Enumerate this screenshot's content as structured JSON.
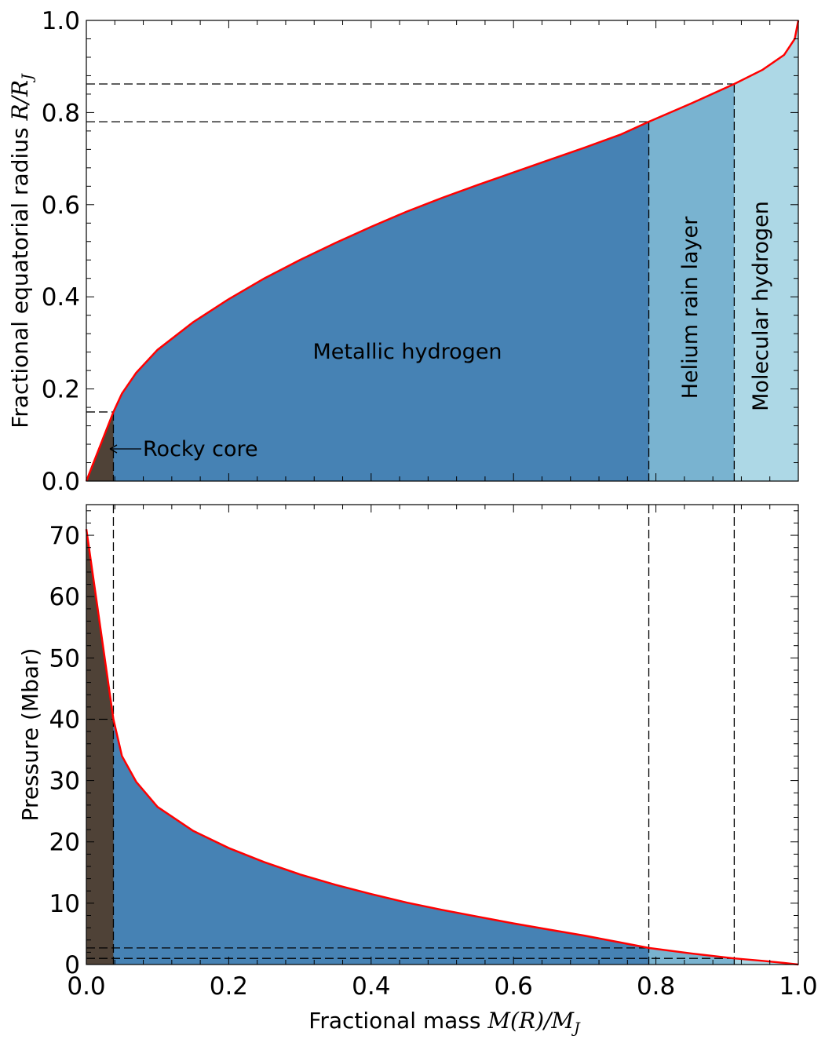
{
  "colors": {
    "rocky_core": "#4f4237",
    "metallic_hydrogen": "#4682b4",
    "helium_rain": "#79b3d0",
    "molecular_hydrogen": "#add8e6",
    "curve": "#ff0000",
    "dashed": "#000000"
  },
  "chart_data": [
    {
      "type": "area",
      "title": "",
      "xlabel": "",
      "ylabel": "Fractional equatorial radius",
      "ylabel_math": "R/R",
      "ylabel_math_sub": "J",
      "xlim": [
        0,
        1
      ],
      "ylim": [
        0,
        1
      ],
      "x_ticks": [
        0.0,
        0.2,
        0.4,
        0.6,
        0.8,
        1.0
      ],
      "y_ticks": [
        "0.0",
        "0.2",
        "0.4",
        "0.6",
        "0.8",
        "1.0"
      ],
      "boundaries": [
        {
          "mass": 0.038,
          "radius": 0.15
        },
        {
          "mass": 0.79,
          "radius": 0.78
        },
        {
          "mass": 0.91,
          "radius": 0.862
        }
      ],
      "series": [
        {
          "x": [
            0,
            0.038,
            0.05,
            0.07,
            0.1,
            0.15,
            0.2,
            0.25,
            0.3,
            0.35,
            0.4,
            0.45,
            0.5,
            0.55,
            0.6,
            0.65,
            0.7,
            0.75,
            0.79,
            0.85,
            0.91,
            0.95,
            0.98,
            0.995,
            1.0
          ],
          "y": [
            0,
            0.15,
            0.19,
            0.235,
            0.285,
            0.345,
            0.395,
            0.44,
            0.48,
            0.517,
            0.552,
            0.585,
            0.615,
            0.643,
            0.67,
            0.697,
            0.724,
            0.752,
            0.78,
            0.82,
            0.862,
            0.893,
            0.925,
            0.96,
            1.0
          ]
        }
      ],
      "annotations": {
        "metallic": "Metallic hydrogen",
        "helium": "Helium rain layer",
        "molecular": "Molecular hydrogen",
        "rocky": "Rocky core"
      }
    },
    {
      "type": "area",
      "title": "",
      "xlabel": "Fractional mass",
      "xlabel_math": "M(R)/M",
      "xlabel_math_sub": "J",
      "ylabel": "Pressure (Mbar)",
      "xlim": [
        0,
        1
      ],
      "ylim": [
        0,
        75
      ],
      "x_ticks": [
        "0.0",
        "0.2",
        "0.4",
        "0.6",
        "0.8",
        "1.0"
      ],
      "y_ticks": [
        "0",
        "10",
        "20",
        "30",
        "40",
        "50",
        "60",
        "70"
      ],
      "boundaries": [
        {
          "mass": 0.038,
          "pressure": 40
        },
        {
          "mass": 0.79,
          "pressure": 2.7
        },
        {
          "mass": 0.91,
          "pressure": 1.0
        }
      ],
      "series": [
        {
          "x": [
            0,
            0.038,
            0.05,
            0.07,
            0.1,
            0.15,
            0.2,
            0.25,
            0.3,
            0.35,
            0.4,
            0.45,
            0.5,
            0.55,
            0.6,
            0.65,
            0.7,
            0.75,
            0.79,
            0.85,
            0.91,
            0.95,
            0.98,
            1.0
          ],
          "y": [
            71,
            40,
            34,
            29.8,
            25.7,
            21.8,
            19.0,
            16.7,
            14.7,
            13.0,
            11.5,
            10.1,
            8.9,
            7.8,
            6.7,
            5.7,
            4.7,
            3.6,
            2.7,
            1.8,
            1.0,
            0.6,
            0.25,
            0
          ]
        }
      ]
    }
  ]
}
